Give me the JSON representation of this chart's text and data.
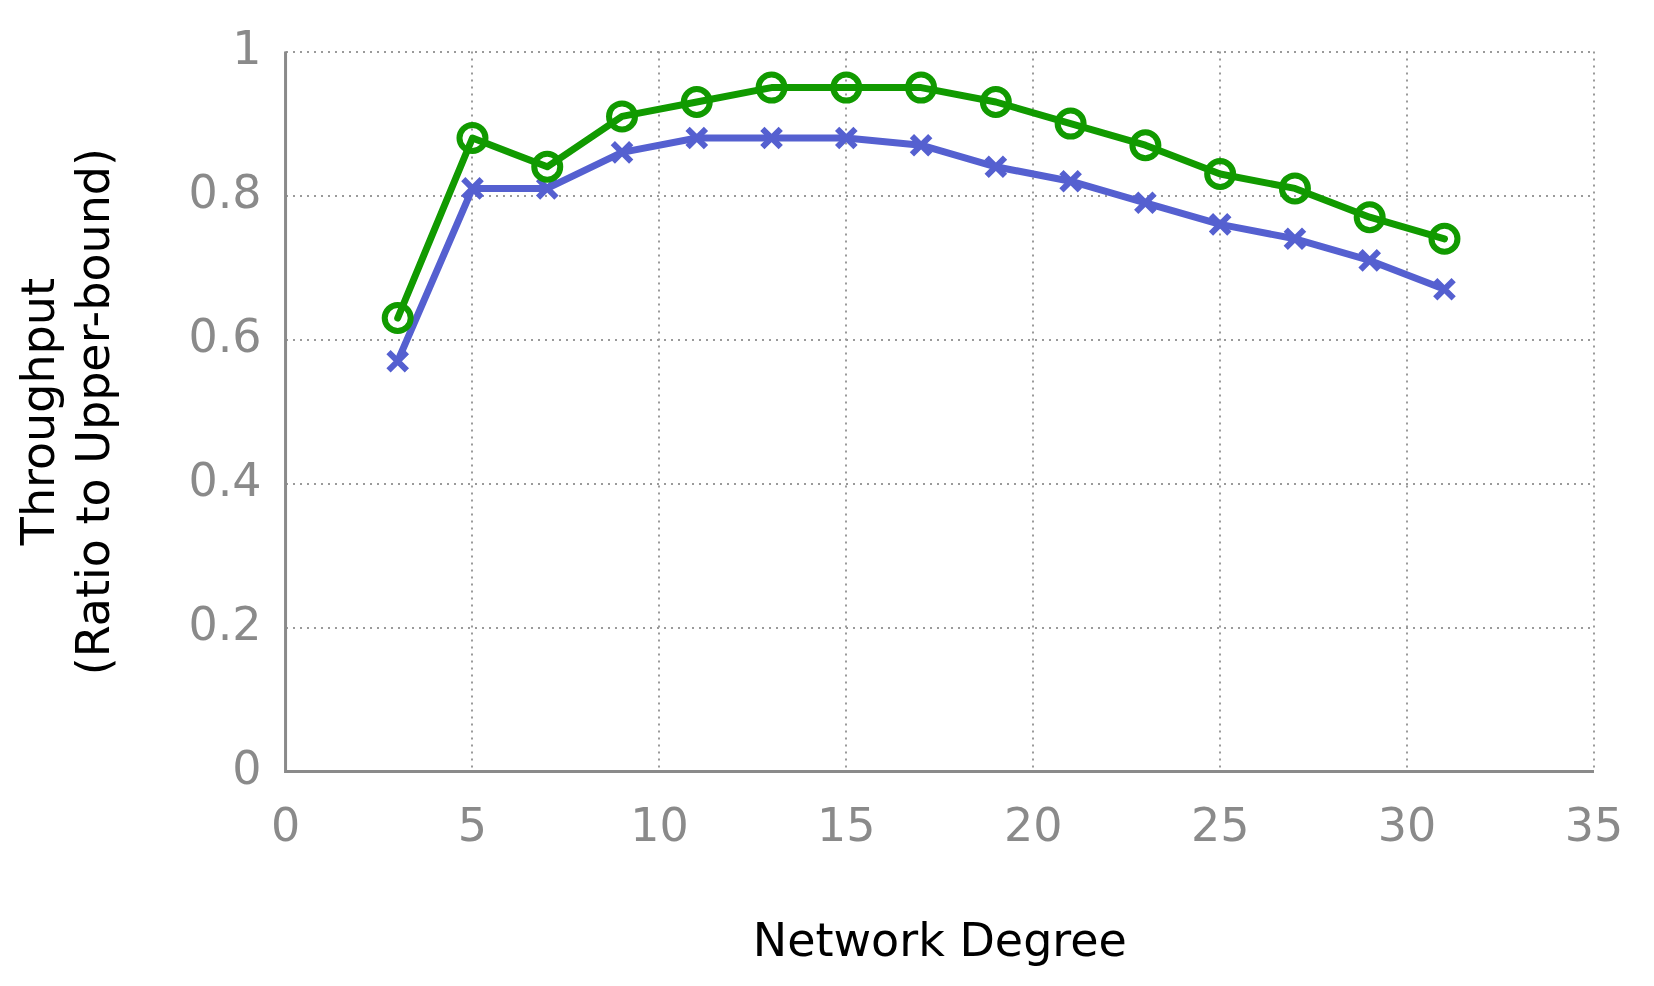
{
  "chart_data": {
    "type": "line",
    "xlabel": "Network Degree",
    "ylabel": "Throughput\n(Ratio to Upper-bound)",
    "x": [
      3,
      5,
      7,
      9,
      11,
      13,
      15,
      17,
      19,
      21,
      23,
      25,
      27,
      29,
      31
    ],
    "series": [
      {
        "color": "#119a00",
        "marker": "circle",
        "values": [
          0.63,
          0.88,
          0.84,
          0.91,
          0.93,
          0.95,
          0.95,
          0.95,
          0.93,
          0.9,
          0.87,
          0.83,
          0.81,
          0.77,
          0.74
        ]
      },
      {
        "color": "#5560d0",
        "marker": "cross",
        "values": [
          0.57,
          0.81,
          0.81,
          0.86,
          0.88,
          0.88,
          0.88,
          0.87,
          0.84,
          0.82,
          0.79,
          0.76,
          0.74,
          0.71,
          0.67
        ]
      }
    ],
    "xlim": [
      0,
      35
    ],
    "xticks": [
      0,
      5,
      10,
      15,
      20,
      25,
      30,
      35
    ],
    "ylim": [
      0,
      1
    ],
    "yticks": [
      0,
      0.2,
      0.4,
      0.6,
      0.8,
      1
    ],
    "grid": true,
    "legend": false,
    "line_style": "solid"
  }
}
